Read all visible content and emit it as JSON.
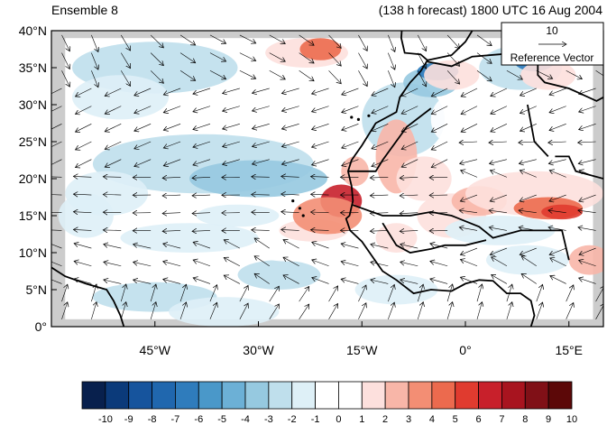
{
  "header": {
    "left_title": "Ensemble 8",
    "right_title": "(138 h forecast) 1800 UTC 16 Aug 2004"
  },
  "map": {
    "lat_range": [
      0,
      40
    ],
    "lon_range": [
      -60,
      20
    ],
    "lat_ticks": [
      {
        "value": 0,
        "label": "0°"
      },
      {
        "value": 5,
        "label": "5°N"
      },
      {
        "value": 10,
        "label": "10°N"
      },
      {
        "value": 15,
        "label": "15°N"
      },
      {
        "value": 20,
        "label": "20°N"
      },
      {
        "value": 25,
        "label": "25°N"
      },
      {
        "value": 30,
        "label": "30°N"
      },
      {
        "value": 35,
        "label": "35°N"
      },
      {
        "value": 40,
        "label": "40°N"
      }
    ],
    "lon_ticks": [
      {
        "value": -45,
        "label": "45°W"
      },
      {
        "value": -30,
        "label": "30°W"
      },
      {
        "value": -15,
        "label": "15°W"
      },
      {
        "value": 0,
        "label": "0°"
      },
      {
        "value": 15,
        "label": "15°E"
      }
    ],
    "reference_vector": {
      "magnitude_label": "10",
      "label": "Reference Vector"
    },
    "land_color": "#000000",
    "missing_color": "#cccccc"
  },
  "colorbar": {
    "labels": [
      "-10",
      "-9",
      "-8",
      "-7",
      "-6",
      "-5",
      "-4",
      "-3",
      "-2",
      "-1",
      "0",
      "1",
      "2",
      "3",
      "4",
      "5",
      "6",
      "7",
      "8",
      "9",
      "10"
    ],
    "colors": [
      "#08204d",
      "#0b3a7a",
      "#16549d",
      "#2067ae",
      "#2f7cbc",
      "#4a98c9",
      "#6cb0d6",
      "#96c9e0",
      "#bfdfec",
      "#def0f7",
      "#ffffff",
      "#ffffff",
      "#fde0dd",
      "#f8b6a8",
      "#f38e74",
      "#ec6a4e",
      "#e03b2f",
      "#c8202b",
      "#a8141f",
      "#801017",
      "#5c0808"
    ]
  }
}
